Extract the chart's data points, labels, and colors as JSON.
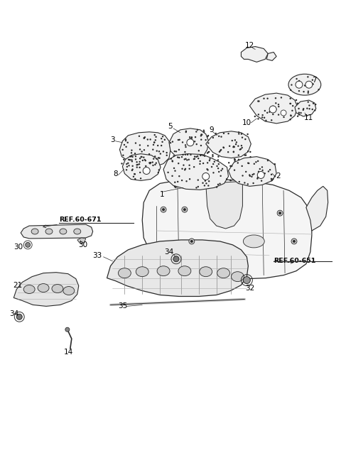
{
  "bg_color": "#ffffff",
  "line_color": "#2a2a2a",
  "fig_width": 4.8,
  "fig_height": 6.55,
  "dpi": 100,
  "label_fs": 7.5,
  "ref_fs": 6.8
}
